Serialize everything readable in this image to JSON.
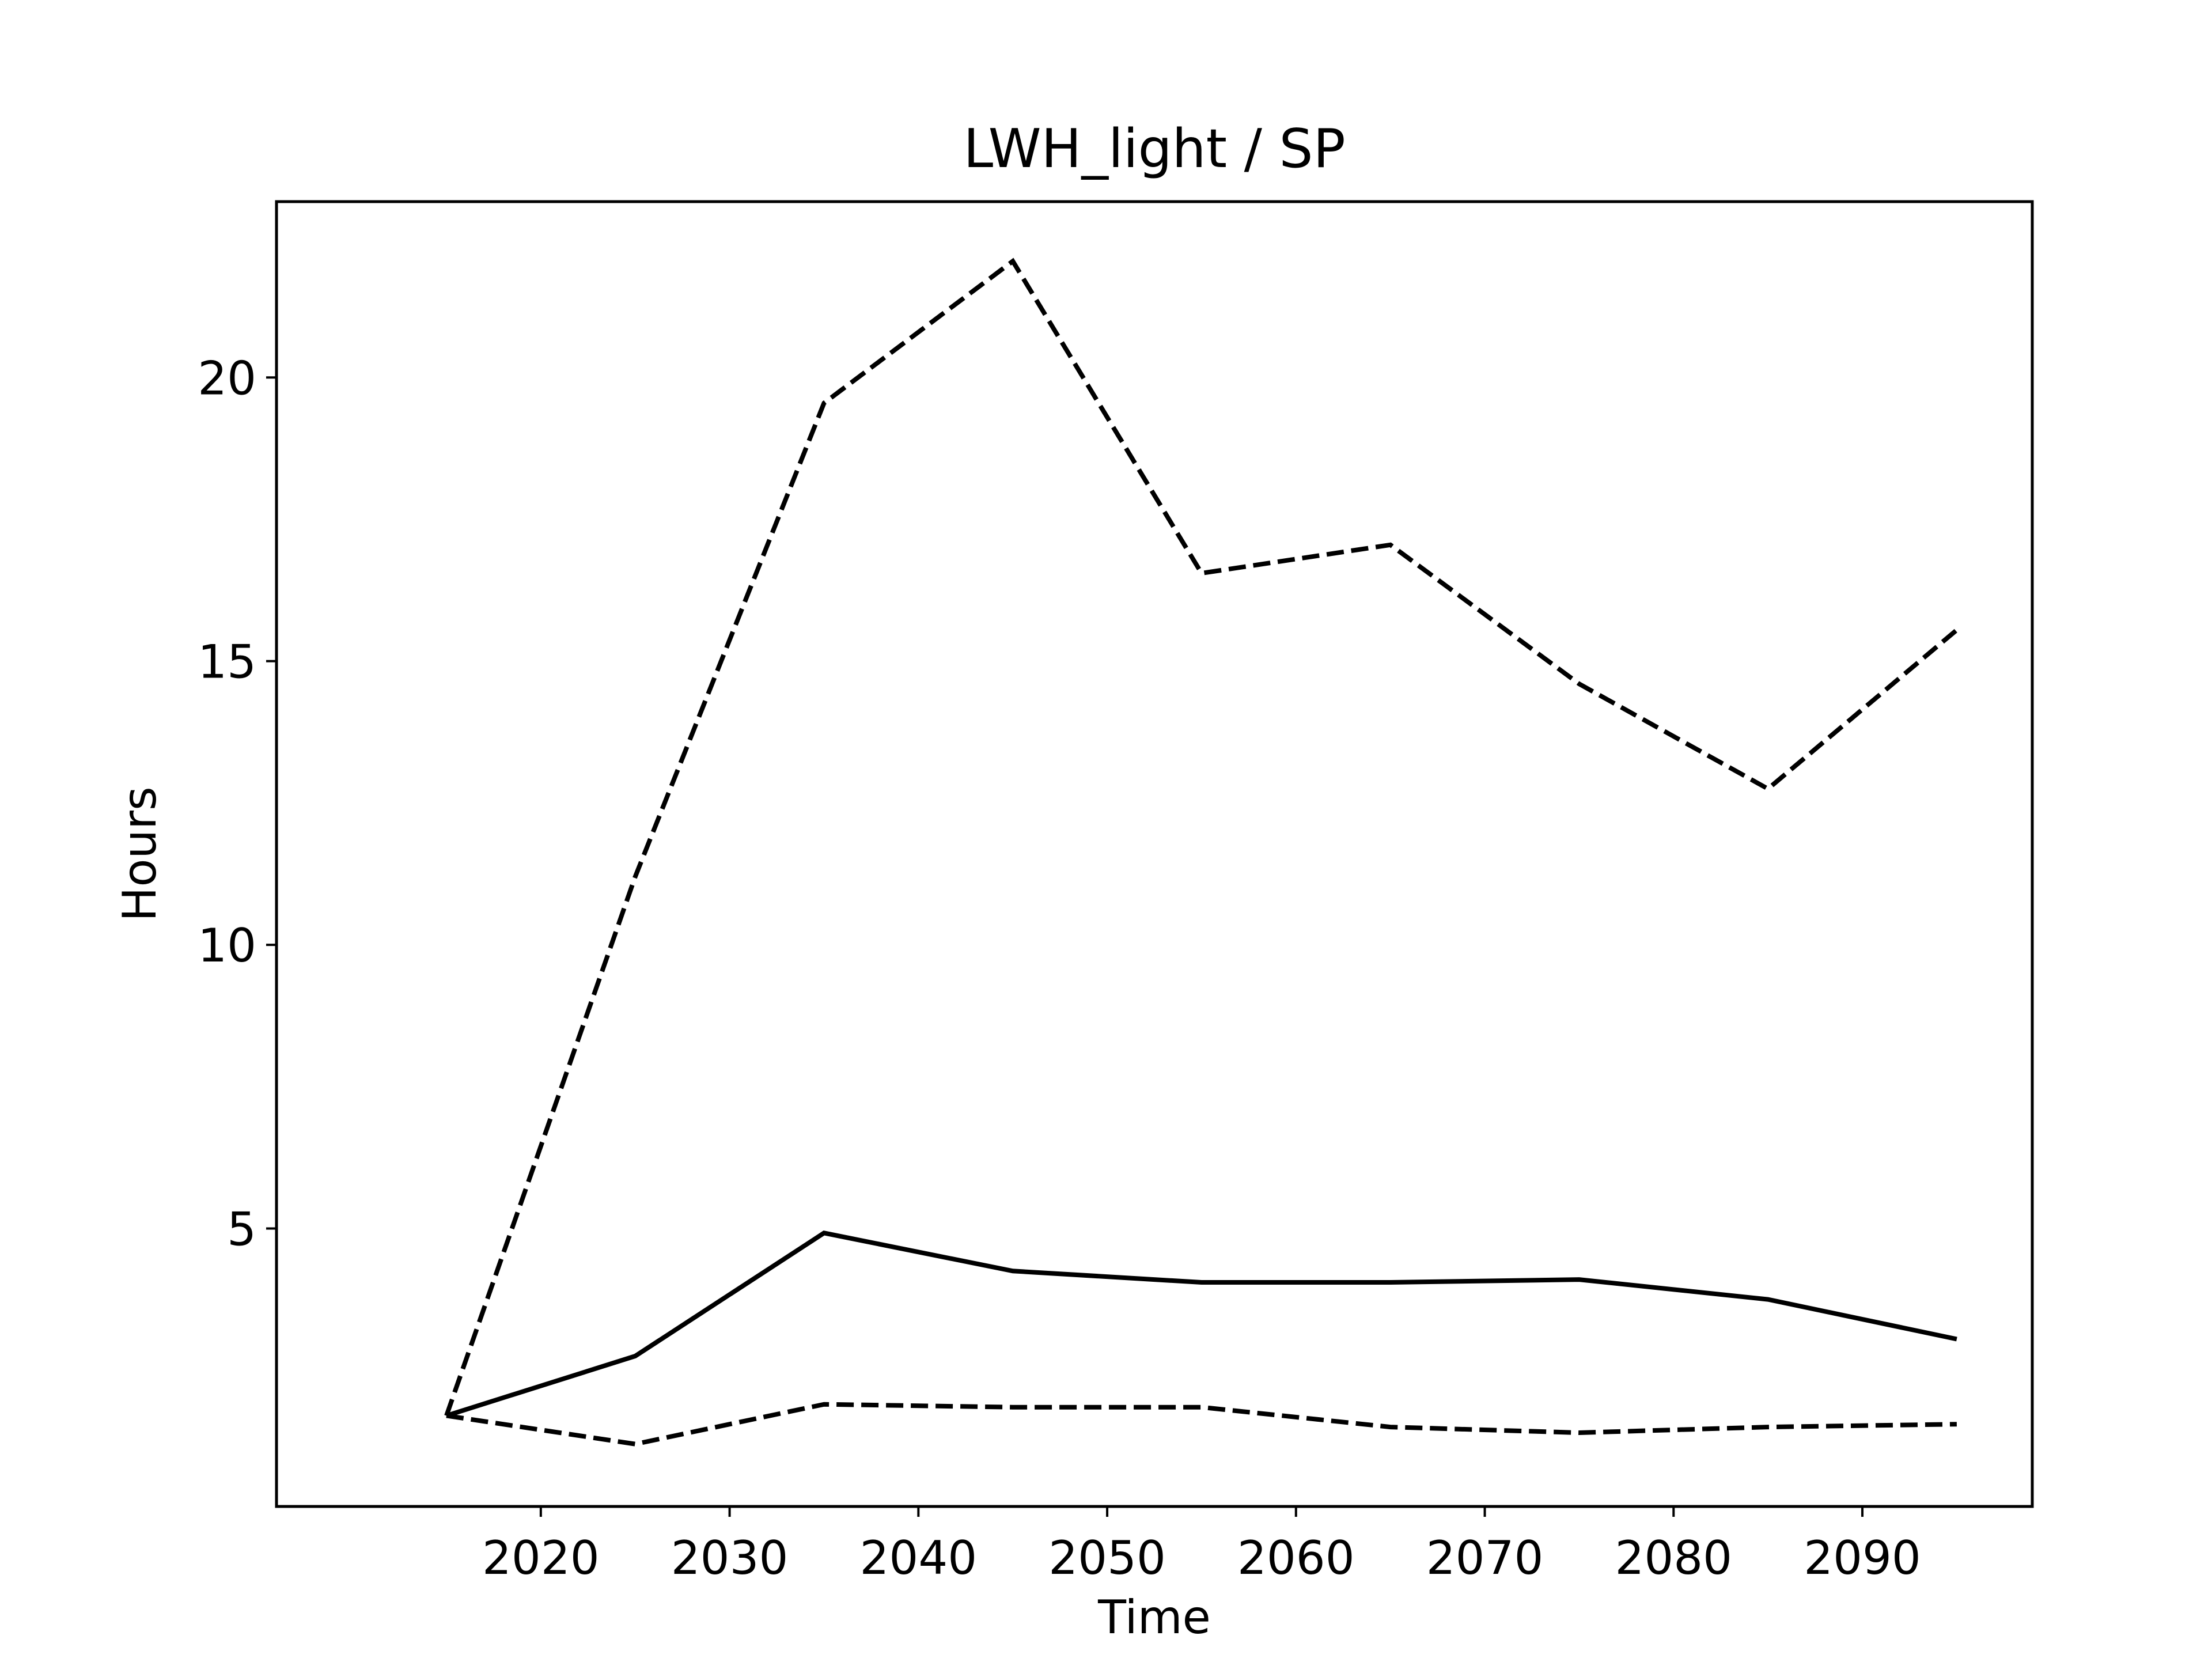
{
  "chart_data": {
    "type": "line",
    "title": "LWH_light / SP",
    "xlabel": "Time",
    "ylabel": "Hours",
    "x": [
      2015,
      2025,
      2035,
      2045,
      2055,
      2065,
      2075,
      2085,
      2095
    ],
    "series": [
      {
        "style": "solid",
        "values": [
          1.7,
          2.75,
          4.92,
          4.25,
          4.05,
          4.05,
          4.1,
          3.75,
          3.05
        ]
      },
      {
        "style": "dashed",
        "values": [
          1.7,
          11.2,
          19.55,
          22.05,
          16.55,
          17.05,
          14.6,
          12.75,
          15.55
        ]
      },
      {
        "style": "dashed",
        "values": [
          1.7,
          1.2,
          1.9,
          1.85,
          1.85,
          1.5,
          1.4,
          1.5,
          1.55
        ]
      }
    ],
    "xlim": [
      2006,
      2099
    ],
    "ylim": [
      0.1,
      23.1
    ],
    "xticks": [
      "2020",
      "2030",
      "2040",
      "2050",
      "2060",
      "2070",
      "2080",
      "2090"
    ],
    "yticks": [
      "5",
      "10",
      "15",
      "20"
    ],
    "legend": "none",
    "grid": false,
    "colors": {
      "line": "#000000",
      "background": "#ffffff"
    }
  }
}
